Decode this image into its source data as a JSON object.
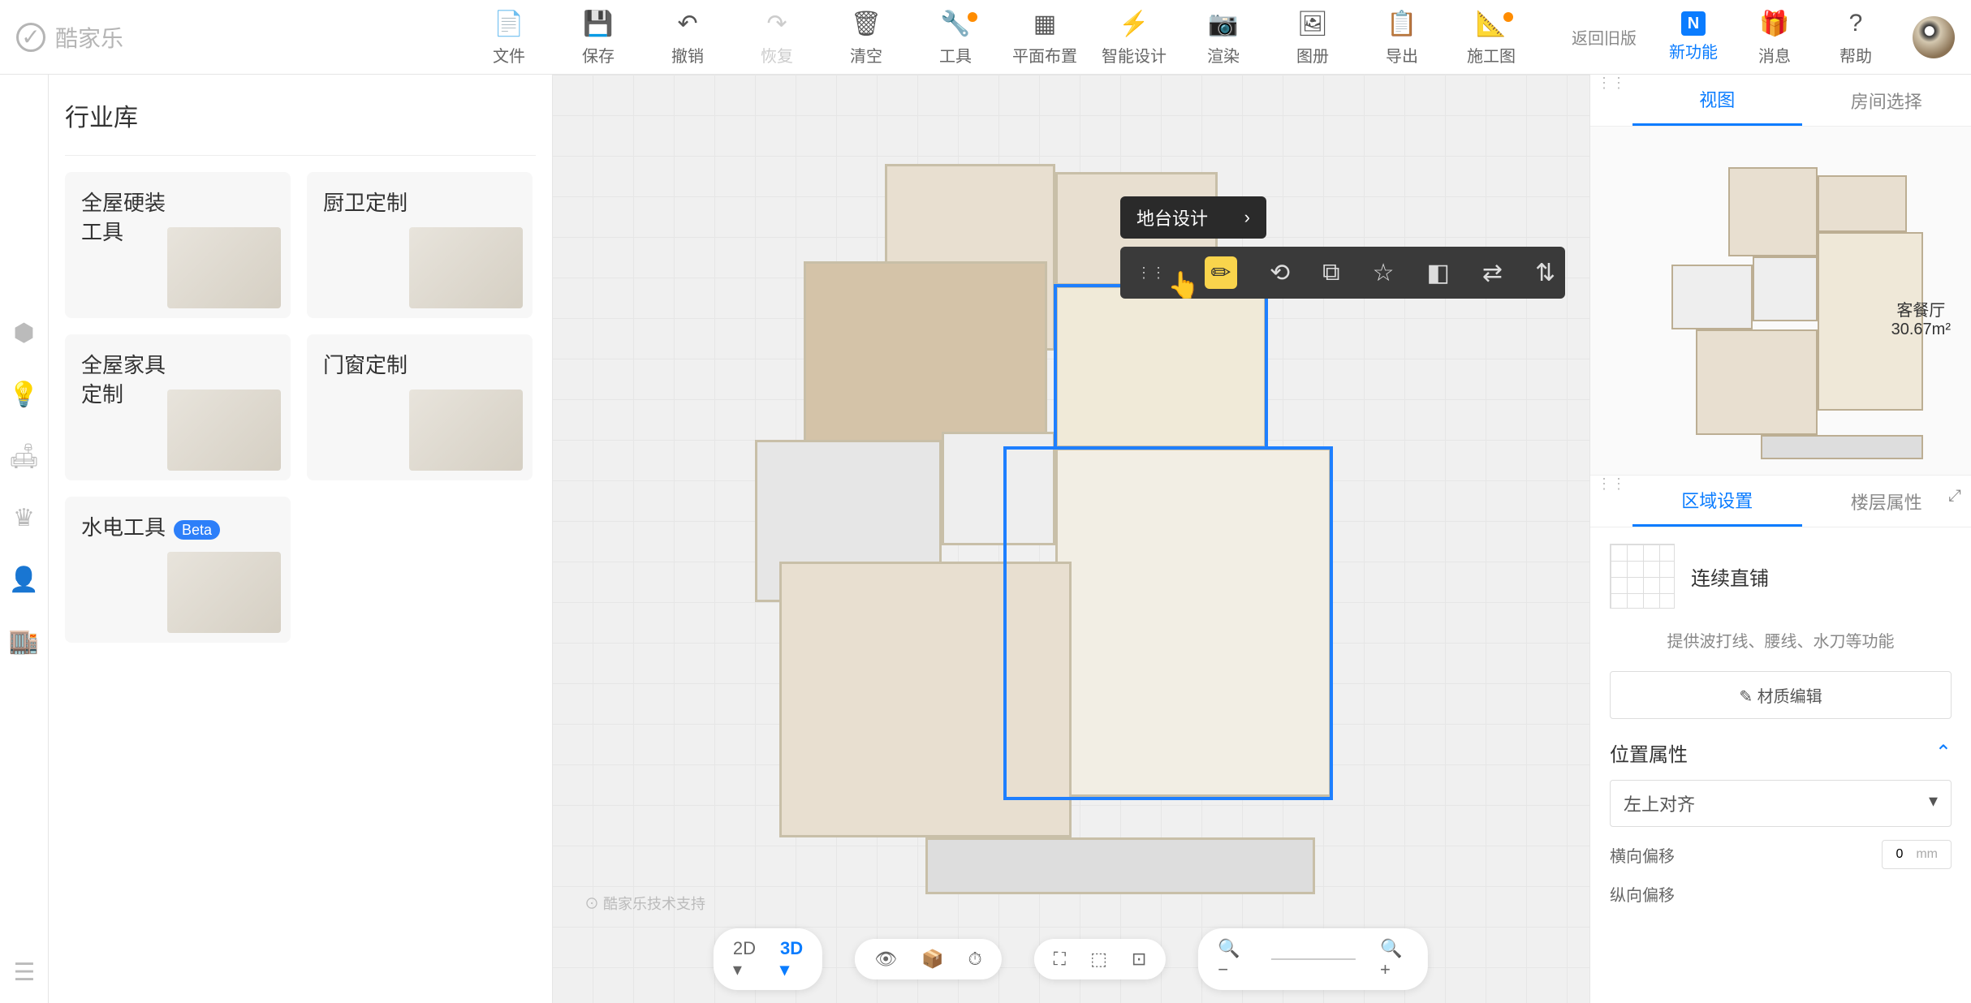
{
  "brand": "酷家乐",
  "topbar": {
    "tools": [
      {
        "label": "文件",
        "icon": "📄"
      },
      {
        "label": "保存",
        "icon": "💾"
      },
      {
        "label": "撤销",
        "icon": "↶"
      },
      {
        "label": "恢复",
        "icon": "↷",
        "disabled": true
      },
      {
        "label": "清空",
        "icon": "🗑"
      },
      {
        "label": "工具",
        "icon": "🔧",
        "dot": true
      },
      {
        "label": "平面布置",
        "icon": "▦"
      },
      {
        "label": "智能设计",
        "icon": "⚡"
      },
      {
        "label": "渲染",
        "icon": "📷"
      },
      {
        "label": "图册",
        "icon": "🖼"
      },
      {
        "label": "导出",
        "icon": "📋"
      },
      {
        "label": "施工图",
        "icon": "📐",
        "dot": true
      }
    ],
    "back_old": "返回旧版",
    "right": [
      {
        "label": "新功能",
        "badge": "N",
        "highlight": true
      },
      {
        "label": "消息",
        "icon": "🎁"
      },
      {
        "label": "帮助",
        "icon": "?"
      }
    ]
  },
  "left_panel": {
    "title": "行业库",
    "cards": [
      {
        "title": "全屋硬装\n工具"
      },
      {
        "title": "厨卫定制"
      },
      {
        "title": "全屋家具\n定制"
      },
      {
        "title": "门窗定制"
      },
      {
        "title": "水电工具",
        "beta": "Beta"
      }
    ]
  },
  "canvas": {
    "context_label": "地台设计",
    "watermark": "酷家乐技术支持",
    "bottom": {
      "view": [
        "2D",
        "3D"
      ],
      "view_active": "3D",
      "icons1": [
        "👁",
        "📦",
        "⏱"
      ],
      "icons2": [
        "⛶",
        "⬚",
        "⊡"
      ],
      "zoom": [
        "−",
        "—",
        "+"
      ]
    }
  },
  "right_panel": {
    "tabs_view": [
      "视图",
      "房间选择"
    ],
    "tabs_view_active": "视图",
    "room_name": "客餐厅",
    "room_area": "30.67m²",
    "tabs_prop": [
      "区域设置",
      "楼层属性"
    ],
    "tabs_prop_active": "区域设置",
    "tile_name": "连续直铺",
    "hint": "提供波打线、腰线、水刀等功能",
    "edit_btn": "✎ 材质编辑",
    "pos_header": "位置属性",
    "align_select": "左上对齐",
    "offset_h": {
      "label": "横向偏移",
      "value": "0",
      "unit": "mm"
    },
    "offset_v": {
      "label": "纵向偏移"
    }
  }
}
